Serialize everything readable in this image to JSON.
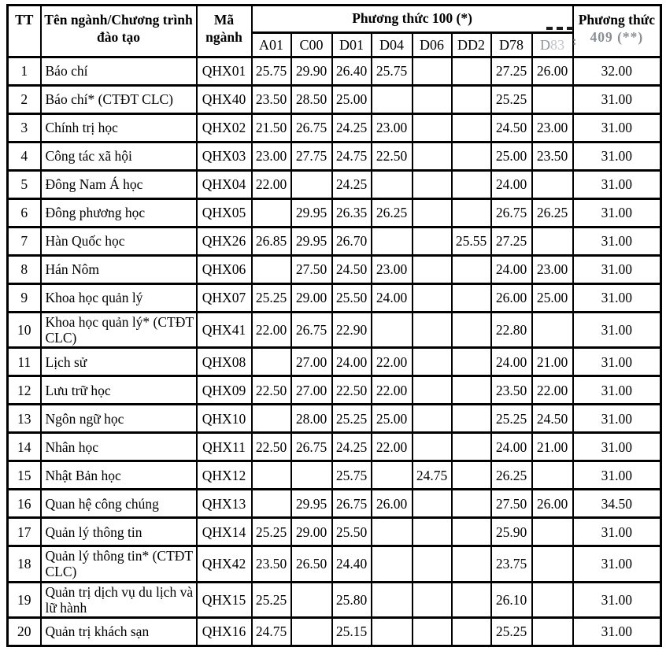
{
  "table": {
    "headers": {
      "tt": "TT",
      "program": "Tên ngành/Chương trình đào tạo",
      "code": "Mã ngành",
      "method100": "Phương thức 100 (*)",
      "method409_line1": "Phương thức",
      "method409_line2": "409 (**)"
    },
    "score_columns": [
      "A01",
      "C00",
      "D01",
      "D04",
      "D06",
      "DD2",
      "D78",
      "D83"
    ],
    "rows": [
      {
        "tt": "1",
        "name": "Báo chí",
        "code": "QHX01",
        "scores": {
          "A01": "25.75",
          "C00": "29.90",
          "D01": "26.40",
          "D04": "25.75",
          "D78": "27.25",
          "D83": "26.00"
        },
        "method409": "32.00"
      },
      {
        "tt": "2",
        "name": "Báo chí* (CTĐT CLC)",
        "code": "QHX40",
        "scores": {
          "A01": "23.50",
          "C00": "28.50",
          "D01": "25.00",
          "D78": "25.25"
        },
        "method409": "31.00"
      },
      {
        "tt": "3",
        "name": "Chính trị học",
        "code": "QHX02",
        "scores": {
          "A01": "21.50",
          "C00": "26.75",
          "D01": "24.25",
          "D04": "23.00",
          "D78": "24.50",
          "D83": "23.00"
        },
        "method409": "31.00"
      },
      {
        "tt": "4",
        "name": "Công tác xã hội",
        "code": "QHX03",
        "scores": {
          "A01": "23.00",
          "C00": "27.75",
          "D01": "24.75",
          "D04": "22.50",
          "D78": "25.00",
          "D83": "23.50"
        },
        "method409": "31.00"
      },
      {
        "tt": "5",
        "name": "Đông Nam Á học",
        "code": "QHX04",
        "scores": {
          "A01": "22.00",
          "D01": "24.25",
          "D78": "24.00"
        },
        "method409": "31.00"
      },
      {
        "tt": "6",
        "name": "Đông phương học",
        "code": "QHX05",
        "scores": {
          "C00": "29.95",
          "D01": "26.35",
          "D04": "26.25",
          "D78": "26.75",
          "D83": "26.25"
        },
        "method409": "31.00"
      },
      {
        "tt": "7",
        "name": "Hàn Quốc học",
        "code": "QHX26",
        "scores": {
          "A01": "26.85",
          "C00": "29.95",
          "D01": "26.70",
          "DD2": "25.55",
          "D78": "27.25"
        },
        "method409": "31.00"
      },
      {
        "tt": "8",
        "name": "Hán Nôm",
        "code": "QHX06",
        "scores": {
          "C00": "27.50",
          "D01": "24.50",
          "D04": "23.00",
          "D78": "24.00",
          "D83": "23.00"
        },
        "method409": "31.00"
      },
      {
        "tt": "9",
        "name": "Khoa học quản lý",
        "code": "QHX07",
        "scores": {
          "A01": "25.25",
          "C00": "29.00",
          "D01": "25.50",
          "D04": "24.00",
          "D78": "26.00",
          "D83": "25.00"
        },
        "method409": "31.00"
      },
      {
        "tt": "10",
        "name": "Khoa học quản lý* (CTĐT CLC)",
        "code": "QHX41",
        "scores": {
          "A01": "22.00",
          "C00": "26.75",
          "D01": "22.90",
          "D78": "22.80"
        },
        "method409": "31.00"
      },
      {
        "tt": "11",
        "name": "Lịch sử",
        "code": "QHX08",
        "scores": {
          "C00": "27.00",
          "D01": "24.00",
          "D04": "22.00",
          "D78": "24.00",
          "D83": "21.00"
        },
        "method409": "31.00"
      },
      {
        "tt": "12",
        "name": "Lưu trữ học",
        "code": "QHX09",
        "scores": {
          "A01": "22.50",
          "C00": "27.00",
          "D01": "22.50",
          "D04": "22.00",
          "D78": "23.50",
          "D83": "22.00"
        },
        "method409": "31.00"
      },
      {
        "tt": "13",
        "name": "Ngôn ngữ học",
        "code": "QHX10",
        "scores": {
          "C00": "28.00",
          "D01": "25.25",
          "D04": "25.00",
          "D78": "25.25",
          "D83": "24.50"
        },
        "method409": "31.00"
      },
      {
        "tt": "14",
        "name": "Nhân học",
        "code": "QHX11",
        "scores": {
          "A01": "22.50",
          "C00": "26.75",
          "D01": "24.25",
          "D04": "22.00",
          "D78": "24.00",
          "D83": "21.00"
        },
        "method409": "31.00"
      },
      {
        "tt": "15",
        "name": "Nhật Bản học",
        "code": "QHX12",
        "scores": {
          "D01": "25.75",
          "D06": "24.75",
          "D78": "26.25"
        },
        "method409": "31.00"
      },
      {
        "tt": "16",
        "name": "Quan hệ công chúng",
        "code": "QHX13",
        "scores": {
          "C00": "29.95",
          "D01": "26.75",
          "D04": "26.00",
          "D78": "27.50",
          "D83": "26.00"
        },
        "method409": "34.50"
      },
      {
        "tt": "17",
        "name": "Quản lý thông tin",
        "code": "QHX14",
        "scores": {
          "A01": "25.25",
          "C00": "29.00",
          "D01": "25.50",
          "D78": "25.90"
        },
        "method409": "31.00"
      },
      {
        "tt": "18",
        "name": "Quản lý thông tin* (CTĐT CLC)",
        "code": "QHX42",
        "scores": {
          "A01": "23.50",
          "C00": "26.50",
          "D01": "24.40",
          "D78": "23.75"
        },
        "method409": "31.00"
      },
      {
        "tt": "19",
        "name": "Quản trị dịch vụ du lịch và lữ hành",
        "code": "QHX15",
        "scores": {
          "A01": "25.25",
          "D01": "25.80",
          "D78": "26.10"
        },
        "method409": "31.00"
      },
      {
        "tt": "20",
        "name": "Quản trị khách sạn",
        "code": "QHX16",
        "scores": {
          "A01": "24.75",
          "D01": "25.15",
          "D78": "25.25"
        },
        "method409": "31.00"
      }
    ]
  },
  "colors": {
    "border": "#000000",
    "text": "#000000",
    "faded_watermark": "#8e949b",
    "background": "#ffffff"
  }
}
